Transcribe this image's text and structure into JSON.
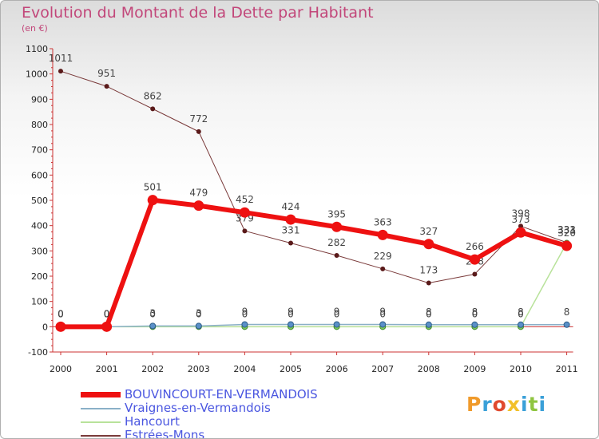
{
  "header": {
    "title": "Evolution du Montant de la Dette par Habitant",
    "unit": "(en €)"
  },
  "logo": {
    "text": "Proxiti",
    "colors": [
      "#f09a2a",
      "#3aa0d8",
      "#e04a2f",
      "#f2c02a",
      "#3aa0d8",
      "#8fc540",
      "#3aa0d8"
    ]
  },
  "chart_data": {
    "type": "line",
    "title": "Evolution du Montant de la Dette par Habitant",
    "ylabel": "(en €)",
    "xlabel": "",
    "ylim": [
      -100,
      1100
    ],
    "yticks": [
      "-100",
      "0",
      "100",
      "200",
      "300",
      "400",
      "500",
      "600",
      "700",
      "800",
      "900",
      "1000",
      "1100"
    ],
    "categories": [
      "2000",
      "2001",
      "2002",
      "2003",
      "2004",
      "2005",
      "2006",
      "2007",
      "2008",
      "2009",
      "2010",
      "2011"
    ],
    "grid": false,
    "series": [
      {
        "name": "Estrées-Mons",
        "color": "#7a3a3a",
        "width": 1,
        "values": [
          1011,
          951,
          862,
          772,
          379,
          331,
          282,
          229,
          173,
          208,
          398,
          333
        ],
        "labels": [
          "1011",
          "951",
          "862",
          "772",
          "379",
          "331",
          "282",
          "229",
          "173",
          "208",
          "398",
          "333"
        ]
      },
      {
        "name": "Hancourt",
        "color": "#b8e29a",
        "width": 1.5,
        "values": [
          0,
          0,
          0,
          0,
          0,
          0,
          0,
          0,
          0,
          0,
          0,
          331
        ],
        "labels": [
          "0",
          "0",
          "0",
          "0",
          "0",
          "0",
          "0",
          "0",
          "0",
          "0",
          "0",
          "331"
        ]
      },
      {
        "name": "Vraignes-en-Vermandois",
        "color": "#8ab0c8",
        "width": 1.5,
        "values": [
          0,
          0,
          3,
          3,
          9,
          9,
          9,
          9,
          8,
          8,
          8,
          8
        ],
        "labels": [
          "0",
          "0",
          "3",
          "3",
          "9",
          "9",
          "9",
          "9",
          "8",
          "8",
          "8",
          "8"
        ]
      },
      {
        "name": "BOUVINCOURT-EN-VERMANDOIS",
        "color": "#ee1111",
        "width": 6,
        "values": [
          0,
          0,
          501,
          479,
          452,
          424,
          395,
          363,
          327,
          266,
          373,
          320
        ],
        "labels": [
          "0",
          "0",
          "501",
          "479",
          "452",
          "424",
          "395",
          "363",
          "327",
          "266",
          "373",
          "320"
        ]
      }
    ],
    "legend": [
      "BOUVINCOURT-EN-VERMANDOIS",
      "Vraignes-en-Vermandois",
      "Hancourt",
      "Estrées-Mons"
    ]
  }
}
